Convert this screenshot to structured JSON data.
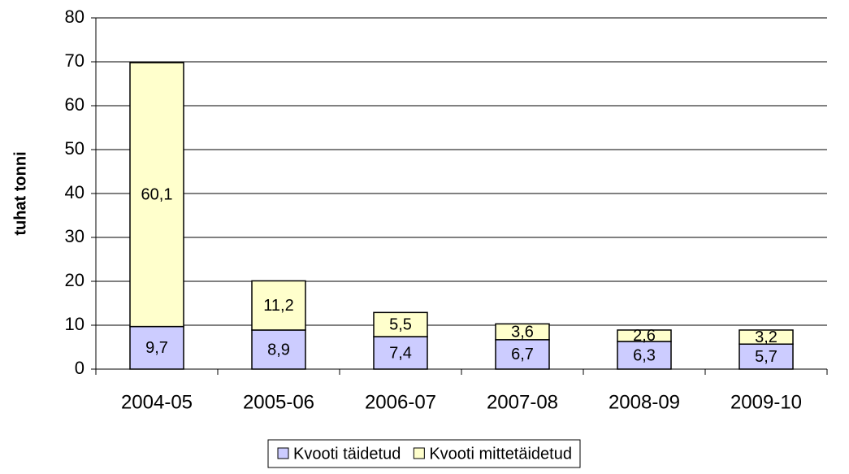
{
  "chart_data": {
    "type": "stacked_bar",
    "y_label": "tuhat tonni",
    "categories": [
      "2004-05",
      "2005-06",
      "2006-07",
      "2007-08",
      "2008-09",
      "2009-10"
    ],
    "series": [
      {
        "name": "Kvooti täidetud",
        "color": "#ccccff",
        "values": [
          9.7,
          8.9,
          7.4,
          6.7,
          6.3,
          5.7
        ],
        "value_labels": [
          "9,7",
          "8,9",
          "7,4",
          "6,7",
          "6,3",
          "5,7"
        ]
      },
      {
        "name": "Kvooti mittetäidetud",
        "color": "#ffffcc",
        "values": [
          60.1,
          11.2,
          5.5,
          3.6,
          2.6,
          3.2
        ],
        "value_labels": [
          "60,1",
          "11,2",
          "5,5",
          "3,6",
          "2,6",
          "3,2"
        ]
      }
    ],
    "ylim": [
      0,
      80
    ],
    "yticks": [
      0,
      10,
      20,
      30,
      40,
      50,
      60,
      70,
      80
    ],
    "grid": true,
    "legend": "bottom"
  }
}
